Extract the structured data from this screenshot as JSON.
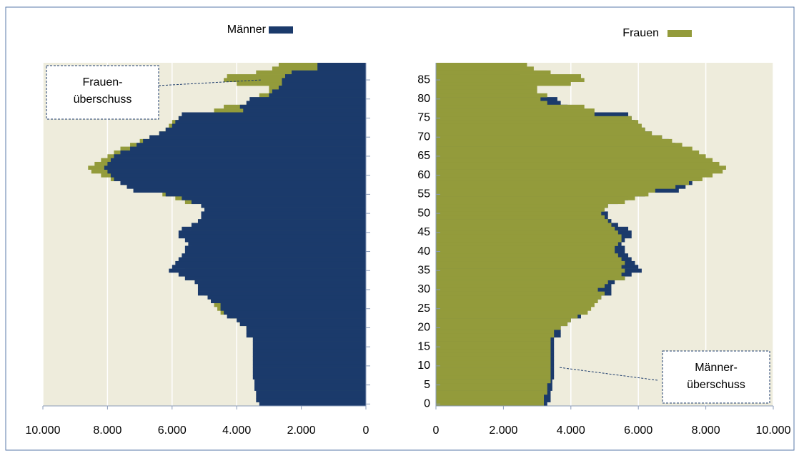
{
  "chart_data": {
    "type": "bar",
    "orientation": "horizontal",
    "y": [
      0,
      1,
      2,
      3,
      4,
      5,
      6,
      7,
      8,
      9,
      10,
      11,
      12,
      13,
      14,
      15,
      16,
      17,
      18,
      19,
      20,
      21,
      22,
      23,
      24,
      25,
      26,
      27,
      28,
      29,
      30,
      31,
      32,
      33,
      34,
      35,
      36,
      37,
      38,
      39,
      40,
      41,
      42,
      43,
      44,
      45,
      46,
      47,
      48,
      49,
      50,
      51,
      52,
      53,
      54,
      55,
      56,
      57,
      58,
      59,
      60,
      61,
      62,
      63,
      64,
      65,
      66,
      67,
      68,
      69,
      70,
      71,
      72,
      73,
      74,
      75,
      76,
      77,
      78,
      79,
      80,
      81,
      82,
      83,
      84,
      85,
      86,
      87,
      88,
      89
    ],
    "series": [
      {
        "name": "Männer",
        "color": "#1b3a6b",
        "values": [
          3300,
          3400,
          3400,
          3400,
          3450,
          3450,
          3450,
          3500,
          3500,
          3500,
          3500,
          3500,
          3500,
          3500,
          3500,
          3500,
          3500,
          3500,
          3700,
          3700,
          3700,
          3900,
          4000,
          4300,
          4400,
          4500,
          4500,
          4800,
          4900,
          5200,
          5200,
          5200,
          5300,
          5600,
          5800,
          6100,
          6000,
          5900,
          5800,
          5700,
          5600,
          5600,
          5500,
          5600,
          5800,
          5800,
          5700,
          5400,
          5200,
          5100,
          5100,
          5000,
          5100,
          5400,
          5700,
          6200,
          7200,
          7400,
          7600,
          7800,
          7900,
          8000,
          8100,
          8000,
          7900,
          7800,
          7600,
          7300,
          7100,
          6900,
          6700,
          6400,
          6200,
          6000,
          5900,
          5800,
          5700,
          3800,
          3900,
          3700,
          3600,
          3000,
          2900,
          2700,
          2600,
          2600,
          2500,
          2300,
          1500,
          1500
        ]
      },
      {
        "name": "Frauen",
        "color": "#939b3b",
        "values": [
          3200,
          3200,
          3200,
          3300,
          3300,
          3300,
          3400,
          3400,
          3400,
          3400,
          3400,
          3400,
          3400,
          3400,
          3400,
          3400,
          3400,
          3400,
          3500,
          3500,
          3700,
          3900,
          4000,
          4200,
          4500,
          4600,
          4700,
          4800,
          4900,
          5000,
          4800,
          5000,
          5100,
          5600,
          5500,
          5600,
          5500,
          5600,
          5500,
          5400,
          5300,
          5300,
          5400,
          5500,
          5500,
          5400,
          5300,
          5200,
          5100,
          5000,
          4900,
          5000,
          5100,
          5600,
          5900,
          6300,
          6500,
          7100,
          7500,
          7900,
          8200,
          8500,
          8600,
          8400,
          8200,
          8000,
          7800,
          7600,
          7300,
          7000,
          6700,
          6400,
          6200,
          6100,
          6000,
          5800,
          4700,
          4700,
          4400,
          3300,
          3100,
          3300,
          3000,
          3000,
          4000,
          4400,
          4300,
          3400,
          2900,
          2700
        ]
      }
    ],
    "xlim": [
      0,
      10000
    ],
    "xticks": [
      {
        "value": 0,
        "label": "0"
      },
      {
        "value": 2000,
        "label": "2.000"
      },
      {
        "value": 4000,
        "label": "4.000"
      },
      {
        "value": 6000,
        "label": "6.000"
      },
      {
        "value": 8000,
        "label": "8.000"
      },
      {
        "value": 10000,
        "label": "10.000"
      }
    ],
    "ylim": [
      -0.5,
      89.5
    ],
    "yticks": [
      0,
      5,
      10,
      15,
      20,
      25,
      30,
      35,
      40,
      45,
      50,
      55,
      60,
      65,
      70,
      75,
      80,
      85
    ],
    "grid": true,
    "annotations": [
      {
        "lines": [
          "Frauen-",
          "überschuss"
        ]
      },
      {
        "lines": [
          "Männer-",
          "überschuss"
        ]
      }
    ]
  }
}
